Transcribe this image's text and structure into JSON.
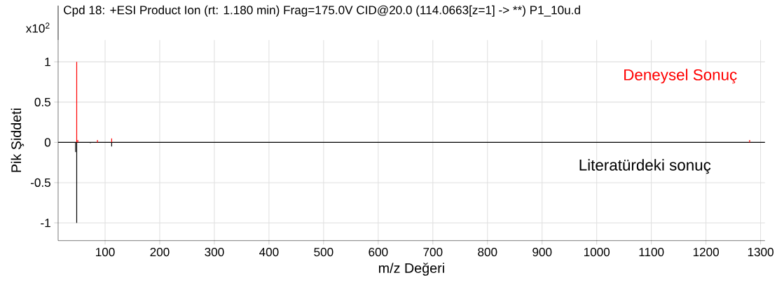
{
  "chart_data": {
    "type": "bar",
    "title": "Cpd 18: +ESI Product Ion (rt: 1.180 min) Frag=175.0V CID@20.0 (114.0663[z=1] -> **) P1_10u.d",
    "xlabel": "m/z Değeri",
    "ylabel": "Pik Şiddeti",
    "annotations": [
      "x10$^{2}$"
    ],
    "series": [
      {
        "name": "Deneysel Sonuç",
        "color": "#ff0000",
        "x": [
          48,
          50,
          86,
          112,
          1280
        ],
        "values": [
          1.0,
          0.03,
          0.03,
          0.05,
          0.03
        ]
      },
      {
        "name": "Literatürdeki sonuç",
        "color": "#000000",
        "x": [
          46,
          48,
          73,
          112
        ],
        "values": [
          -0.12,
          -1.0,
          -0.01,
          -0.05
        ]
      }
    ],
    "xlim": [
      14,
      1308
    ],
    "xticks": [
      100,
      200,
      300,
      400,
      500,
      600,
      700,
      800,
      900,
      1000,
      1100,
      1200,
      1300
    ],
    "ylim": [
      -1.22,
      1.27
    ],
    "yticks": [
      -1,
      -0.5,
      0,
      0.5,
      1
    ],
    "grid": true,
    "legend": "right"
  }
}
